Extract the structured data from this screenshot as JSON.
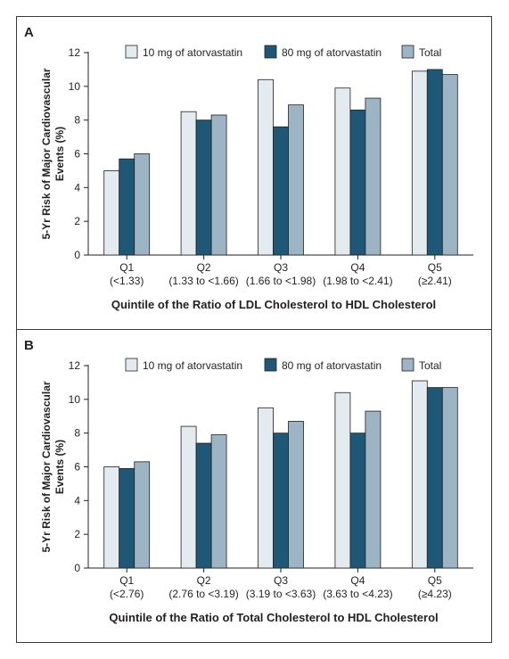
{
  "chart_data": [
    {
      "type": "bar",
      "panel_label": "A",
      "ylabel": "5-Yr Risk of Major Cardiovascular Events (%)",
      "xlabel": "Quintile of the Ratio of LDL Cholesterol to HDL Cholesterol",
      "ylim": [
        0,
        12
      ],
      "yticks": [
        "0",
        "2",
        "4",
        "6",
        "8",
        "10",
        "12"
      ],
      "grid": false,
      "legend_position": "top",
      "categories": [
        "Q1",
        "Q2",
        "Q3",
        "Q4",
        "Q5"
      ],
      "category_sublabels": [
        "(<1.33)",
        "(1.33 to <1.66)",
        "(1.66 to <1.98)",
        "(1.98 to <2.41)",
        "(≥2.41)"
      ],
      "series": [
        {
          "name": "10 mg of atorvastatin",
          "color": "#e3ebf1",
          "values": [
            5.0,
            8.5,
            10.4,
            9.9,
            10.9
          ]
        },
        {
          "name": "80 mg of atorvastatin",
          "color": "#1e5876",
          "values": [
            5.7,
            8.0,
            7.6,
            8.6,
            11.0
          ]
        },
        {
          "name": "Total",
          "color": "#9db4c4",
          "values": [
            6.0,
            8.3,
            8.9,
            9.3,
            10.7
          ]
        }
      ]
    },
    {
      "type": "bar",
      "panel_label": "B",
      "ylabel": "5-Yr Risk of Major Cardiovascular Events (%)",
      "xlabel": "Quintile of the Ratio of Total Cholesterol to HDL Cholesterol",
      "ylim": [
        0,
        12
      ],
      "yticks": [
        "0",
        "2",
        "4",
        "6",
        "8",
        "10",
        "12"
      ],
      "grid": false,
      "legend_position": "top",
      "categories": [
        "Q1",
        "Q2",
        "Q3",
        "Q4",
        "Q5"
      ],
      "category_sublabels": [
        "(<2.76)",
        "(2.76 to <3.19)",
        "(3.19 to <3.63)",
        "(3.63 to <4.23)",
        "(≥4.23)"
      ],
      "series": [
        {
          "name": "10 mg of atorvastatin",
          "color": "#e3ebf1",
          "values": [
            6.0,
            8.4,
            9.5,
            10.4,
            11.1
          ]
        },
        {
          "name": "80 mg of atorvastatin",
          "color": "#1e5876",
          "values": [
            5.9,
            7.4,
            8.0,
            8.0,
            10.7
          ]
        },
        {
          "name": "Total",
          "color": "#9db4c4",
          "values": [
            6.3,
            7.9,
            8.7,
            9.3,
            10.7
          ]
        }
      ]
    }
  ]
}
